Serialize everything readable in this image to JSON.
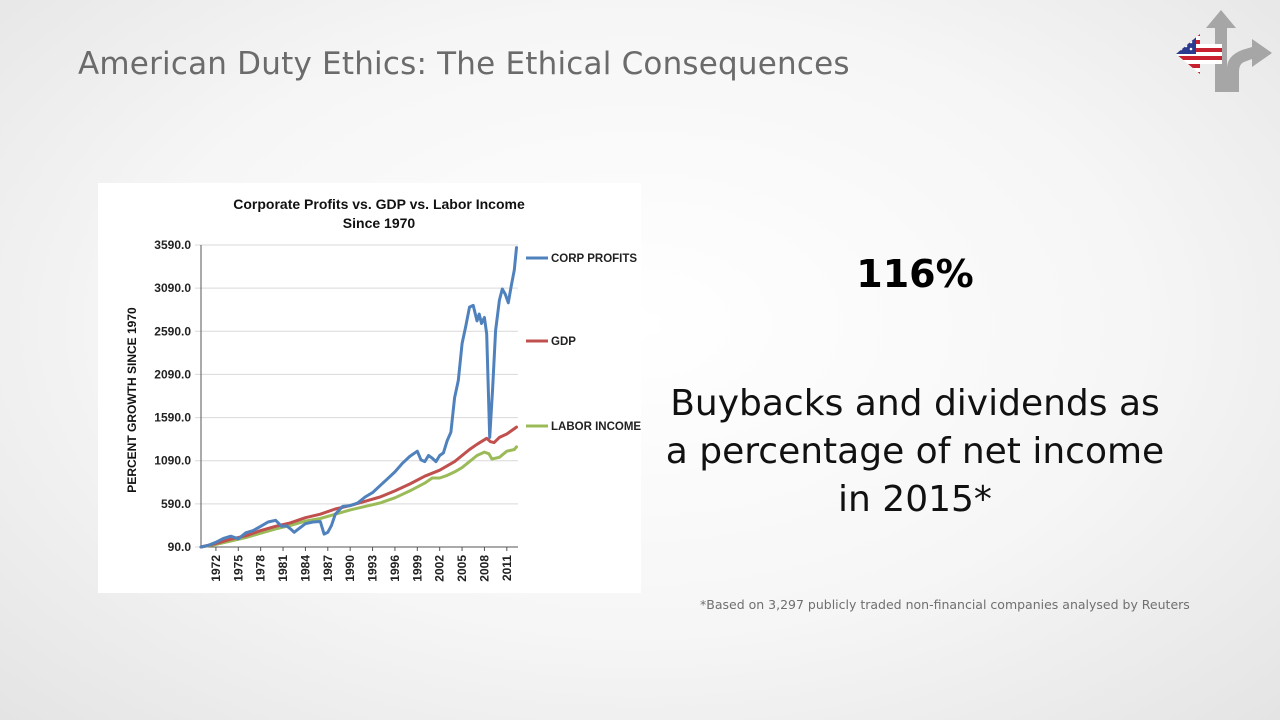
{
  "slide": {
    "title": "American Duty Ethics: The Ethical Consequences",
    "stat_value": "116%",
    "description": "Buybacks and dividends as a percentage of net income in 2015*",
    "footnote": "*Based on 3,297 publicly traded non-financial companies analysed by Reuters"
  },
  "logo": {
    "icon": "diverging-arrow-us-flag-logo",
    "colors": {
      "arrow": "#a6a6a6",
      "flag_red": "#c8202f",
      "flag_blue": "#2b3a8f",
      "flag_white": "#ffffff"
    }
  },
  "chart_data": {
    "type": "line",
    "title": "Corporate Profits vs. GDP vs. Labor Income",
    "subtitle": "Since 1970",
    "xlabel": "",
    "ylabel": "PERCENT GROWTH SINCE 1970",
    "ylim": [
      90,
      3590
    ],
    "xlim": [
      1970,
      2012.5
    ],
    "yticks": [
      "3590.0",
      "3090.0",
      "2590.0",
      "2090.0",
      "1590.0",
      "1090.0",
      "590.0",
      "90.0"
    ],
    "xticks": [
      "1972",
      "1975",
      "1978",
      "1981",
      "1984",
      "1987",
      "1990",
      "1993",
      "1996",
      "1999",
      "2002",
      "2005",
      "2008",
      "2011"
    ],
    "grid": "horizontal",
    "legend": "right",
    "series": [
      {
        "name": "CORP PROFITS",
        "color": "#4f81bd",
        "points": [
          [
            1970,
            90
          ],
          [
            1971,
            110
          ],
          [
            1972,
            145
          ],
          [
            1973,
            190
          ],
          [
            1974,
            215
          ],
          [
            1975,
            185
          ],
          [
            1976,
            255
          ],
          [
            1977,
            280
          ],
          [
            1978,
            330
          ],
          [
            1979,
            380
          ],
          [
            1980,
            400
          ],
          [
            1980.8,
            330
          ],
          [
            1981.5,
            335
          ],
          [
            1982,
            300
          ],
          [
            1982.5,
            260
          ],
          [
            1983,
            295
          ],
          [
            1984,
            360
          ],
          [
            1985,
            380
          ],
          [
            1986,
            385
          ],
          [
            1986.5,
            240
          ],
          [
            1987,
            260
          ],
          [
            1987.5,
            340
          ],
          [
            1988,
            470
          ],
          [
            1989,
            560
          ],
          [
            1990,
            570
          ],
          [
            1991,
            600
          ],
          [
            1992,
            670
          ],
          [
            1993,
            720
          ],
          [
            1994,
            800
          ],
          [
            1995,
            880
          ],
          [
            1996,
            960
          ],
          [
            1997,
            1060
          ],
          [
            1998,
            1140
          ],
          [
            1999,
            1200
          ],
          [
            1999.5,
            1100
          ],
          [
            2000,
            1080
          ],
          [
            2000.5,
            1150
          ],
          [
            2001,
            1120
          ],
          [
            2001.5,
            1080
          ],
          [
            2002,
            1150
          ],
          [
            2002.5,
            1180
          ],
          [
            2003,
            1320
          ],
          [
            2003.5,
            1420
          ],
          [
            2004,
            1820
          ],
          [
            2004.5,
            2020
          ],
          [
            2005,
            2450
          ],
          [
            2005.5,
            2650
          ],
          [
            2006,
            2870
          ],
          [
            2006.5,
            2890
          ],
          [
            2007,
            2710
          ],
          [
            2007.3,
            2790
          ],
          [
            2007.6,
            2680
          ],
          [
            2008,
            2750
          ],
          [
            2008.3,
            2560
          ],
          [
            2008.7,
            1360
          ],
          [
            2009.1,
            1920
          ],
          [
            2009.5,
            2600
          ],
          [
            2010,
            2950
          ],
          [
            2010.4,
            3080
          ],
          [
            2010.8,
            3020
          ],
          [
            2011.2,
            2920
          ],
          [
            2011.6,
            3120
          ],
          [
            2012,
            3300
          ],
          [
            2012.3,
            3560
          ]
        ]
      },
      {
        "name": "GDP",
        "color": "#c0504d",
        "points": [
          [
            1970,
            90
          ],
          [
            1972,
            130
          ],
          [
            1974,
            180
          ],
          [
            1976,
            220
          ],
          [
            1978,
            280
          ],
          [
            1980,
            330
          ],
          [
            1982,
            370
          ],
          [
            1984,
            430
          ],
          [
            1986,
            470
          ],
          [
            1988,
            530
          ],
          [
            1990,
            570
          ],
          [
            1992,
            620
          ],
          [
            1994,
            670
          ],
          [
            1996,
            740
          ],
          [
            1998,
            820
          ],
          [
            2000,
            910
          ],
          [
            2002,
            980
          ],
          [
            2004,
            1080
          ],
          [
            2006,
            1220
          ],
          [
            2007,
            1280
          ],
          [
            2008.3,
            1350
          ],
          [
            2008.8,
            1310
          ],
          [
            2009.3,
            1300
          ],
          [
            2010,
            1360
          ],
          [
            2011,
            1400
          ],
          [
            2012.3,
            1480
          ]
        ]
      },
      {
        "name": "LABOR INCOME",
        "color": "#9bbb59",
        "points": [
          [
            1970,
            90
          ],
          [
            1972,
            120
          ],
          [
            1974,
            160
          ],
          [
            1976,
            200
          ],
          [
            1978,
            250
          ],
          [
            1980,
            300
          ],
          [
            1982,
            340
          ],
          [
            1984,
            390
          ],
          [
            1986,
            420
          ],
          [
            1988,
            470
          ],
          [
            1990,
            520
          ],
          [
            1992,
            560
          ],
          [
            1994,
            600
          ],
          [
            1996,
            660
          ],
          [
            1998,
            740
          ],
          [
            2000,
            830
          ],
          [
            2001,
            890
          ],
          [
            2002,
            890
          ],
          [
            2003,
            920
          ],
          [
            2004,
            960
          ],
          [
            2005,
            1010
          ],
          [
            2006,
            1080
          ],
          [
            2007,
            1150
          ],
          [
            2008,
            1190
          ],
          [
            2008.6,
            1170
          ],
          [
            2009,
            1110
          ],
          [
            2010,
            1130
          ],
          [
            2011,
            1200
          ],
          [
            2012,
            1220
          ],
          [
            2012.3,
            1250
          ]
        ]
      }
    ]
  }
}
